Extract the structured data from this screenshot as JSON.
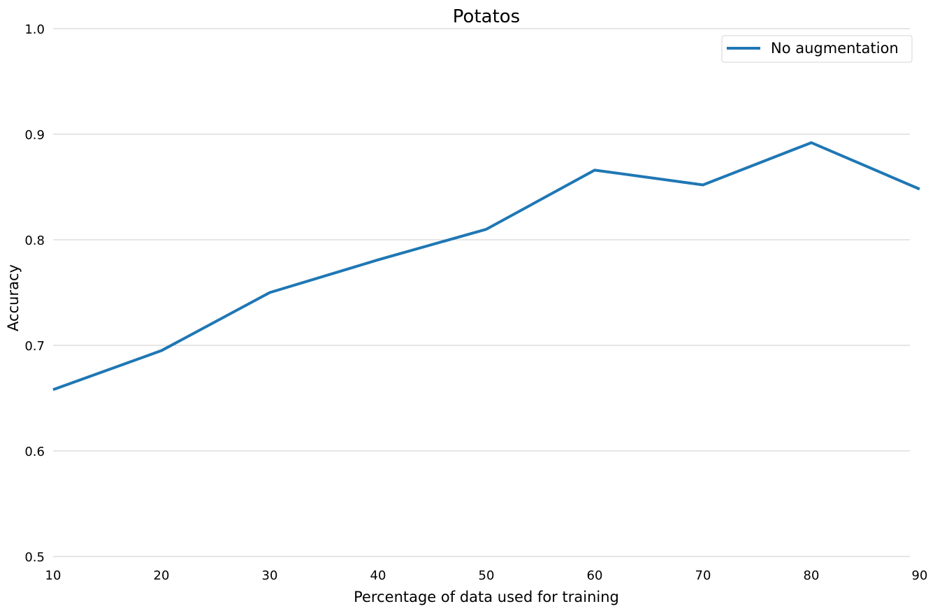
{
  "chart_data": {
    "type": "line",
    "title": "Potatos",
    "xlabel": "Percentage of data used for training",
    "ylabel": "Accuracy",
    "x": [
      10,
      20,
      30,
      40,
      50,
      60,
      70,
      80,
      90
    ],
    "xlim": [
      10,
      90
    ],
    "ylim": [
      0.5,
      1.0
    ],
    "xticks": [
      "10",
      "20",
      "30",
      "40",
      "50",
      "60",
      "70",
      "80",
      "90"
    ],
    "yticks": [
      "0.5",
      "0.6",
      "0.7",
      "0.8",
      "0.9",
      "1.0"
    ],
    "xtick_values": [
      10,
      20,
      30,
      40,
      50,
      60,
      70,
      80,
      90
    ],
    "ytick_values": [
      0.5,
      0.6,
      0.7,
      0.8,
      0.9,
      1.0
    ],
    "grid": "horizontal",
    "legend_position": "top-right",
    "series": [
      {
        "name": "No augmentation",
        "color": "#1f77b4",
        "values": [
          0.658,
          0.695,
          0.75,
          0.781,
          0.81,
          0.866,
          0.852,
          0.892,
          0.848
        ]
      }
    ]
  }
}
